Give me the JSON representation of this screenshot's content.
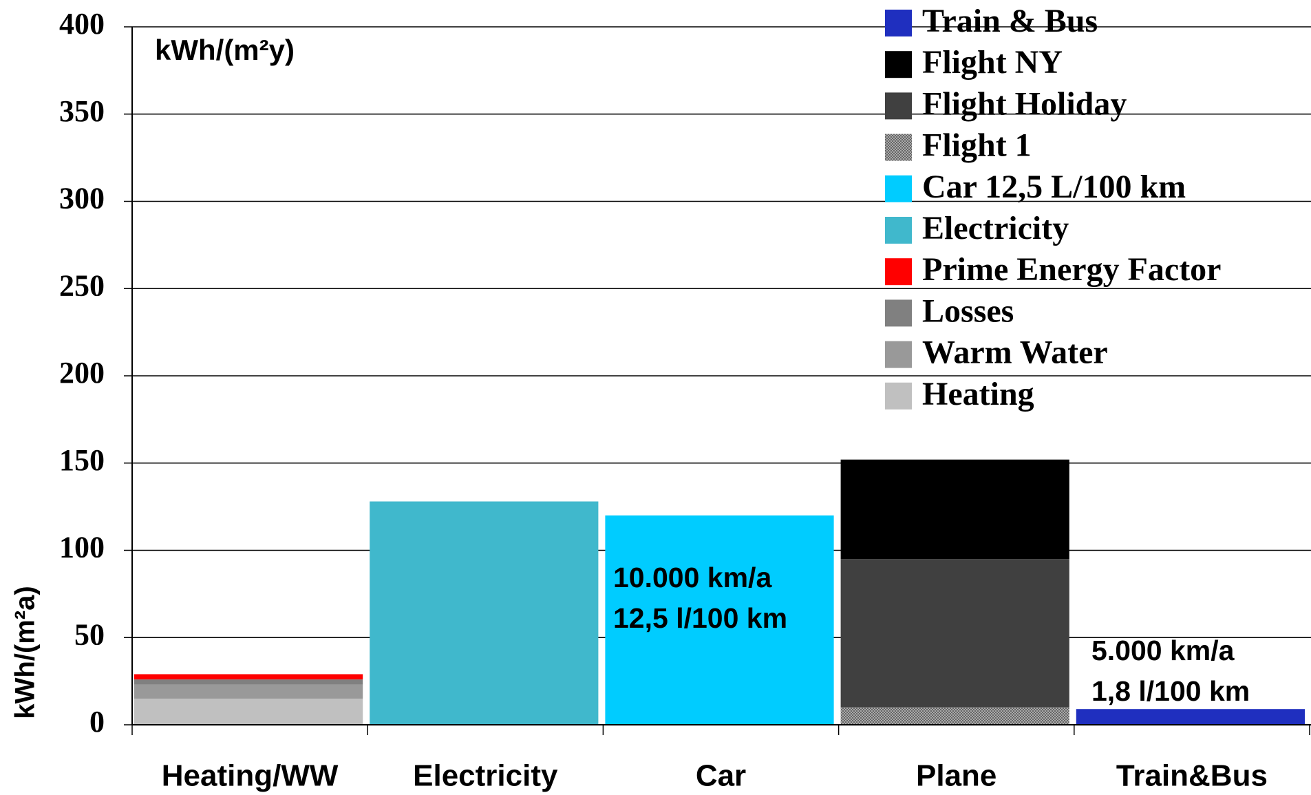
{
  "chart_data": {
    "type": "stacked_bar",
    "unit_label": "kWh/(m²y)",
    "y_label": "kWh/(m²a)",
    "categories": [
      "Heating/WW",
      "Electricity",
      "Car",
      "Plane",
      "Train&Bus"
    ],
    "series": [
      {
        "name": "Heating",
        "color": "#c0c0c0",
        "values": [
          15,
          null,
          null,
          null,
          null
        ]
      },
      {
        "name": "Warm Water",
        "color": "#999999",
        "values": [
          8,
          null,
          null,
          null,
          null
        ]
      },
      {
        "name": "Losses",
        "color": "#808080",
        "values": [
          3,
          null,
          null,
          null,
          null
        ]
      },
      {
        "name": "Prime Energy Factor",
        "color": "#ff0000",
        "values": [
          3,
          null,
          null,
          null,
          null
        ]
      },
      {
        "name": "Electricity",
        "color": "#40b8cc",
        "values": [
          null,
          128,
          null,
          null,
          null
        ]
      },
      {
        "name": "Car 12,5 L/100 km",
        "color": "#00ccff",
        "values": [
          null,
          null,
          120,
          null,
          null
        ]
      },
      {
        "name": "Flight 1",
        "color": "#888888",
        "pattern": "checker",
        "values": [
          null,
          null,
          null,
          10,
          null
        ]
      },
      {
        "name": "Flight Holiday",
        "color": "#404040",
        "values": [
          null,
          null,
          null,
          85,
          null
        ]
      },
      {
        "name": "Flight NY",
        "color": "#000000",
        "values": [
          null,
          null,
          null,
          57,
          null
        ]
      },
      {
        "name": "Train & Bus",
        "color": "#1f2fbf",
        "values": [
          null,
          null,
          null,
          null,
          9
        ]
      }
    ],
    "annotations": [
      [
        "10.000 km/a",
        "12,5 l/100 km"
      ],
      [
        "5.000 km/a",
        "1,8 l/100 km"
      ]
    ],
    "ylim": [
      0,
      400
    ],
    "yticks": [
      0,
      50,
      100,
      150,
      200,
      250,
      300,
      350,
      400
    ],
    "grid": true,
    "legend": "top-right",
    "legend_order": "reversed"
  }
}
